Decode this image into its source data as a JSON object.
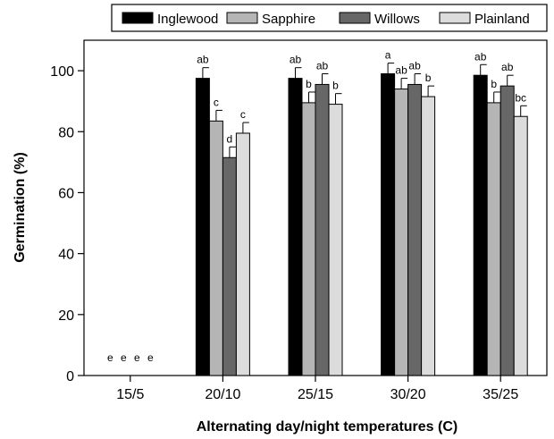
{
  "chart_data": {
    "type": "bar",
    "xlabel": "Alternating day/night temperatures (C)",
    "ylabel": "Germination (%)",
    "ylim": [
      0,
      110
    ],
    "yticks": [
      0,
      20,
      40,
      60,
      80,
      100
    ],
    "grid": false,
    "legend_position": "top",
    "categories": [
      "15/5",
      "20/10",
      "25/15",
      "30/20",
      "35/25"
    ],
    "series": [
      {
        "name": "Inglewood",
        "color": "#000000",
        "values": [
          0,
          97.5,
          97.5,
          99,
          98.5
        ],
        "errors": [
          0,
          3.5,
          3.5,
          3.5,
          3.5
        ],
        "letters": [
          "e",
          "ab",
          "ab",
          "a",
          "ab"
        ]
      },
      {
        "name": "Sapphire",
        "color": "#b5b5b5",
        "values": [
          0,
          83.5,
          89.5,
          94,
          89.5
        ],
        "errors": [
          0,
          3.5,
          3.5,
          3.5,
          3.5
        ],
        "letters": [
          "e",
          "c",
          "b",
          "ab",
          "b"
        ]
      },
      {
        "name": "Willows",
        "color": "#676767",
        "values": [
          0,
          71.5,
          95.5,
          95.5,
          95
        ],
        "errors": [
          0,
          3.5,
          3.5,
          3.5,
          3.5
        ],
        "letters": [
          "e",
          "d",
          "ab",
          "ab",
          "ab"
        ]
      },
      {
        "name": "Plainland",
        "color": "#dcdcdc",
        "values": [
          0,
          79.5,
          89,
          91.5,
          85
        ],
        "errors": [
          0,
          3.5,
          3.5,
          3.5,
          3.5
        ],
        "letters": [
          "e",
          "c",
          "b",
          "b",
          "bc"
        ]
      }
    ]
  }
}
